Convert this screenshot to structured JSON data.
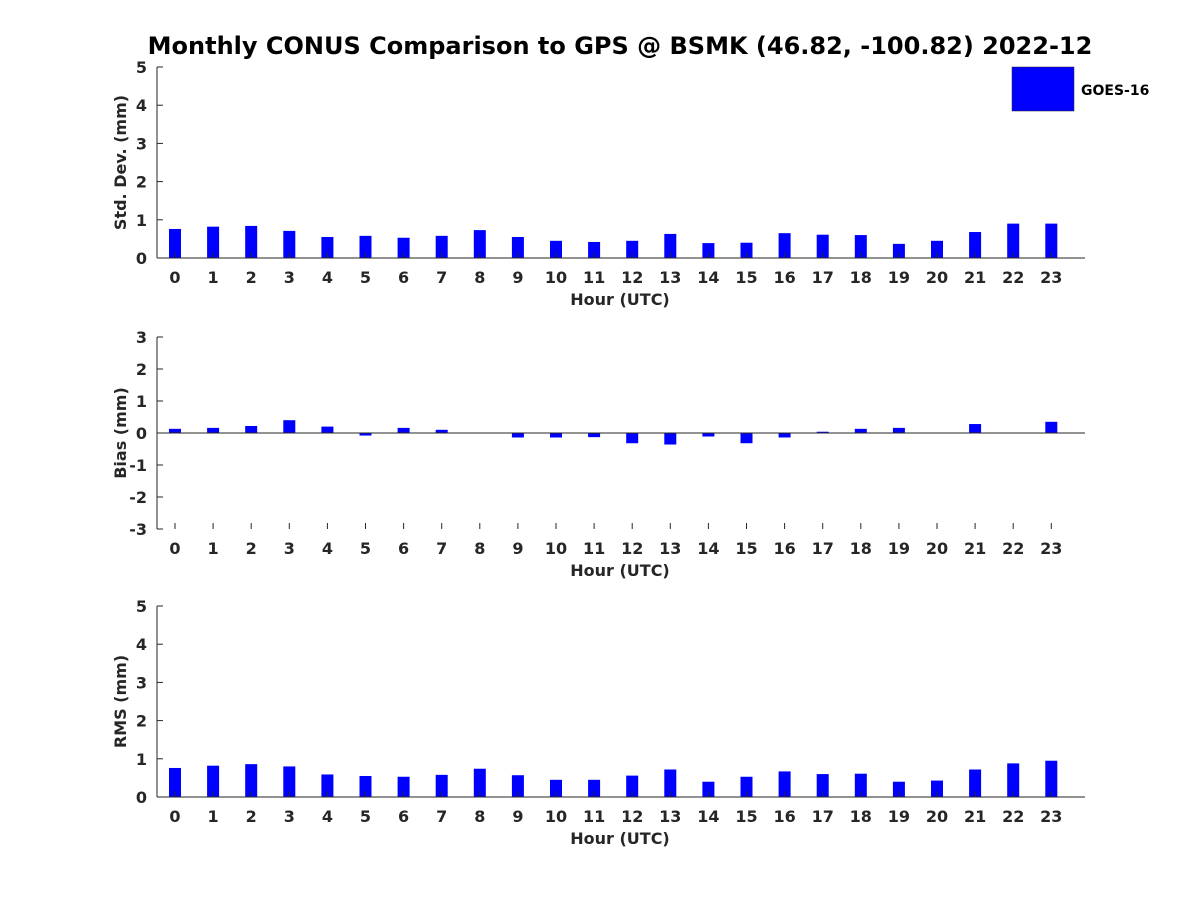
{
  "title": "Monthly CONUS Comparison to GPS @ BSMK (46.82, -100.82) 2022-12",
  "legend": {
    "label": "GOES-16",
    "color": "#0000ff"
  },
  "chart_data": [
    {
      "type": "bar",
      "name": "std_dev",
      "xlabel": "Hour (UTC)",
      "ylabel": "Std. Dev. (mm)",
      "ylim": [
        0,
        5
      ],
      "yticks": [
        0,
        1,
        2,
        3,
        4,
        5
      ],
      "categories": [
        "0",
        "1",
        "2",
        "3",
        "4",
        "5",
        "6",
        "7",
        "8",
        "9",
        "10",
        "11",
        "12",
        "13",
        "14",
        "15",
        "16",
        "17",
        "18",
        "19",
        "20",
        "21",
        "22",
        "23"
      ],
      "series": [
        {
          "name": "GOES-16",
          "color": "#0000ff",
          "values": [
            0.76,
            0.82,
            0.84,
            0.71,
            0.55,
            0.58,
            0.53,
            0.58,
            0.73,
            0.55,
            0.45,
            0.42,
            0.45,
            0.63,
            0.39,
            0.4,
            0.65,
            0.61,
            0.6,
            0.37,
            0.45,
            0.68,
            0.9,
            0.9
          ]
        }
      ]
    },
    {
      "type": "bar",
      "name": "bias",
      "xlabel": "Hour (UTC)",
      "ylabel": "Bias (mm)",
      "ylim": [
        -3,
        3
      ],
      "yticks": [
        -3,
        -2,
        -1,
        0,
        1,
        2,
        3
      ],
      "categories": [
        "0",
        "1",
        "2",
        "3",
        "4",
        "5",
        "6",
        "7",
        "8",
        "9",
        "10",
        "11",
        "12",
        "13",
        "14",
        "15",
        "16",
        "17",
        "18",
        "19",
        "20",
        "21",
        "22",
        "23"
      ],
      "series": [
        {
          "name": "GOES-16",
          "color": "#0000ff",
          "values": [
            0.13,
            0.16,
            0.22,
            0.4,
            0.2,
            -0.08,
            0.16,
            0.1,
            0.0,
            -0.14,
            -0.14,
            -0.13,
            -0.32,
            -0.36,
            -0.11,
            -0.32,
            -0.14,
            0.04,
            0.13,
            0.16,
            0.0,
            0.28,
            0.0,
            0.35
          ]
        }
      ]
    },
    {
      "type": "bar",
      "name": "rms",
      "xlabel": "Hour (UTC)",
      "ylabel": "RMS (mm)",
      "ylim": [
        0,
        5
      ],
      "yticks": [
        0,
        1,
        2,
        3,
        4,
        5
      ],
      "categories": [
        "0",
        "1",
        "2",
        "3",
        "4",
        "5",
        "6",
        "7",
        "8",
        "9",
        "10",
        "11",
        "12",
        "13",
        "14",
        "15",
        "16",
        "17",
        "18",
        "19",
        "20",
        "21",
        "22",
        "23"
      ],
      "series": [
        {
          "name": "GOES-16",
          "color": "#0000ff",
          "values": [
            0.76,
            0.82,
            0.86,
            0.8,
            0.59,
            0.55,
            0.53,
            0.58,
            0.74,
            0.57,
            0.45,
            0.45,
            0.56,
            0.72,
            0.4,
            0.53,
            0.67,
            0.6,
            0.61,
            0.4,
            0.43,
            0.72,
            0.88,
            0.95
          ]
        }
      ]
    }
  ]
}
